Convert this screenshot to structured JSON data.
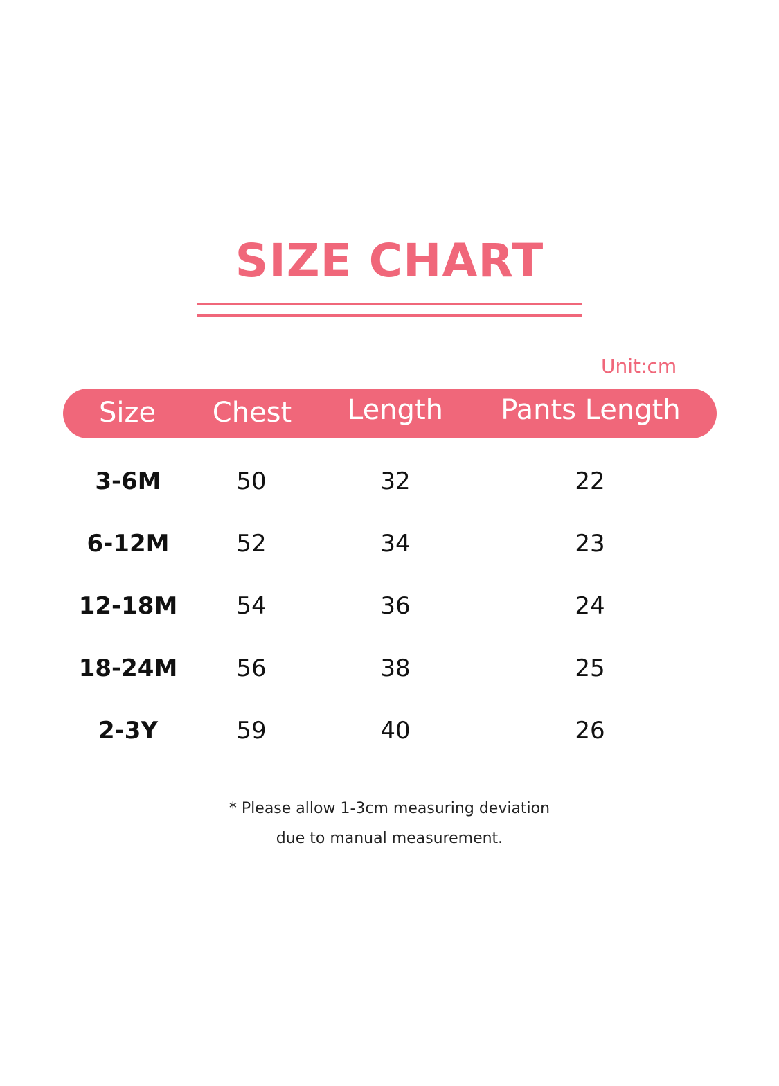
{
  "title": "SIZE CHART",
  "unit": "Unit:cm",
  "accent_color": "#f0677a",
  "columns": [
    "Size",
    "Chest",
    "Length",
    "Pants Length"
  ],
  "rows": [
    [
      "3-6M",
      "50",
      "32",
      "22"
    ],
    [
      "6-12M",
      "52",
      "34",
      "23"
    ],
    [
      "12-18M",
      "54",
      "36",
      "24"
    ],
    [
      "18-24M",
      "56",
      "38",
      "25"
    ],
    [
      "2-3Y",
      "59",
      "40",
      "26"
    ]
  ],
  "note": [
    "* Please allow 1-3cm measuring deviation",
    "due to manual measurement."
  ]
}
